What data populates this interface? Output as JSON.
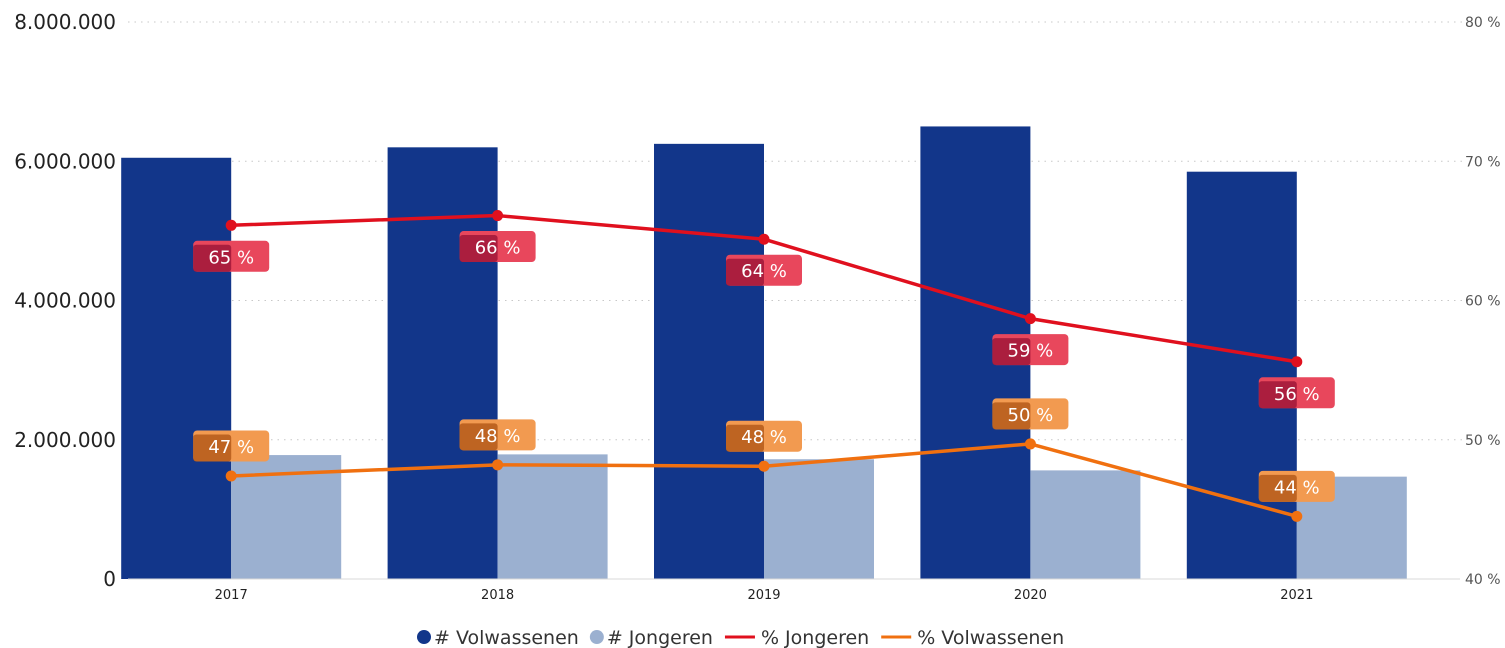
{
  "chart_data": {
    "type": "bar",
    "categories": [
      "2017",
      "2018",
      "2019",
      "2020",
      "2021"
    ],
    "y_left": {
      "ticks": [
        "0",
        "2.000.000",
        "4.000.000",
        "6.000.000",
        "8.000.000"
      ],
      "ylim": [
        0,
        8000000
      ]
    },
    "y_right": {
      "ticks": [
        "40 %",
        "50 %",
        "60 %",
        "70 %",
        "80 %"
      ],
      "ylim": [
        40,
        80
      ]
    },
    "series": [
      {
        "name": "# Volwassenen",
        "type": "bar",
        "axis": "left",
        "color": "#12368A",
        "values": [
          6050000,
          6200000,
          6250000,
          6500000,
          5850000
        ]
      },
      {
        "name": "# Jongeren",
        "type": "bar",
        "axis": "left",
        "color": "#9BB0D0",
        "values": [
          1780000,
          1790000,
          1720000,
          1560000,
          1470000
        ]
      },
      {
        "name": "% Jongeren",
        "type": "line",
        "axis": "right",
        "color": "#E0101E",
        "label_color": "#E8475C",
        "label_dark": "#A01838",
        "values": [
          65.4,
          66.1,
          64.4,
          58.7,
          55.6
        ],
        "labels": [
          "65 %",
          "66 %",
          "64 %",
          "59 %",
          "56 %"
        ]
      },
      {
        "name": "% Volwassenen",
        "type": "line",
        "axis": "right",
        "color": "#F07010",
        "label_color": "#F29A50",
        "label_dark": "#B55A1A",
        "values": [
          47.4,
          48.2,
          48.1,
          49.7,
          44.5
        ],
        "labels": [
          "47 %",
          "48 %",
          "48 %",
          "50 %",
          "44 %"
        ]
      }
    ],
    "legend": {
      "position": "bottom"
    },
    "grid": true
  }
}
